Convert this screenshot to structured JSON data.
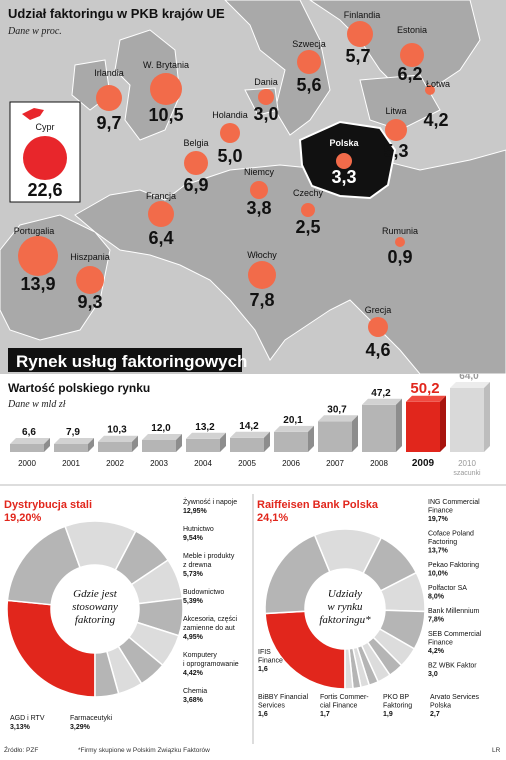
{
  "colors": {
    "map_bg": "#c9c9c9",
    "land": "#a9a9a9",
    "sea": "#d6d6d6",
    "bubble": "#f26b4a",
    "cyprus_bubble": "#e8262b",
    "poland": "#111111",
    "red": "#e1261c",
    "grey_bar": "#b5b5b5",
    "pie_grey": "#b8b8b8",
    "pie_light": "#dedede"
  },
  "map": {
    "title": "Udział faktoringu w PKB krajów UE",
    "subtitle": "Dane w proc.",
    "chart_data": {
      "type": "bubble-map",
      "unit": "%",
      "countries": [
        {
          "name": "Finlandia",
          "value": "5,7"
        },
        {
          "name": "Estonia",
          "value": "6,2"
        },
        {
          "name": "Łotwa",
          "value": "4,2"
        },
        {
          "name": "Litwa",
          "value": "5,3"
        },
        {
          "name": "Szwecja",
          "value": "5,6"
        },
        {
          "name": "Dania",
          "value": "3,0"
        },
        {
          "name": "Irlandia",
          "value": "9,7"
        },
        {
          "name": "W. Brytania",
          "value": "10,5"
        },
        {
          "name": "Holandia",
          "value": "5,0"
        },
        {
          "name": "Belgia",
          "value": "6,9"
        },
        {
          "name": "Polska",
          "value": "3,3"
        },
        {
          "name": "Niemcy",
          "value": "3,8"
        },
        {
          "name": "Czechy",
          "value": "2,5"
        },
        {
          "name": "Francja",
          "value": "6,4"
        },
        {
          "name": "Rumunia",
          "value": "0,9"
        },
        {
          "name": "Portugalia",
          "value": "13,9"
        },
        {
          "name": "Hiszpania",
          "value": "9,3"
        },
        {
          "name": "Włochy",
          "value": "7,8"
        },
        {
          "name": "Grecja",
          "value": "4,6"
        },
        {
          "name": "Cypr",
          "value": "22,6"
        }
      ]
    }
  },
  "banner": "Rynek usług faktoringowych",
  "bar": {
    "title": "Wartość polskiego rynku",
    "subtitle": "Dane w mld zł",
    "chart_data": {
      "type": "bar",
      "categories": [
        "2000",
        "2001",
        "2002",
        "2003",
        "2004",
        "2005",
        "2006",
        "2007",
        "2008",
        "2009",
        "2010"
      ],
      "values": [
        6.6,
        7.9,
        10.3,
        12.0,
        13.2,
        14.2,
        20.1,
        30.7,
        47.2,
        50.2,
        64.0
      ],
      "labels": [
        "6,6",
        "7,9",
        "10,3",
        "12,0",
        "13,2",
        "14,2",
        "20,1",
        "30,7",
        "47,2",
        "50,2",
        "64,0"
      ],
      "highlight": "2009",
      "forecast_note": "szacunki",
      "ylim": [
        0,
        64
      ]
    }
  },
  "pie_left": {
    "title": "Dystrybucja stali",
    "title_value": "19,20%",
    "center_lines": [
      "Gdzie jest",
      "stosowany",
      "faktoring"
    ],
    "chart_data": {
      "type": "pie",
      "slices": [
        {
          "label": "Dystrybucja stali",
          "value": 19.2,
          "text": "19,20%"
        },
        {
          "label": "Żywność i napoje",
          "value": 12.95,
          "text": "12,95%"
        },
        {
          "label": "Hutnictwo",
          "value": 9.54,
          "text": "9,54%"
        },
        {
          "label": "Meble i produkty z drewna",
          "value": 5.73,
          "text": "5,73%"
        },
        {
          "label": "Budownictwo",
          "value": 5.39,
          "text": "5,39%"
        },
        {
          "label": "Akcesoria, części zamienne do aut",
          "value": 4.95,
          "text": "4,95%"
        },
        {
          "label": "Komputery i oprogramowanie",
          "value": 4.42,
          "text": "4,42%"
        },
        {
          "label": "Chemia",
          "value": 3.68,
          "text": "3,68%"
        },
        {
          "label": "Farmaceutyki",
          "value": 3.29,
          "text": "3,29%"
        },
        {
          "label": "AGD i RTV",
          "value": 3.13,
          "text": "3,13%"
        }
      ]
    },
    "labels_right": [
      {
        "lines": [
          "Żywność i napoje"
        ],
        "value": "12,95%"
      },
      {
        "lines": [
          "Hutnictwo"
        ],
        "value": "9,54%"
      },
      {
        "lines": [
          "Meble i produkty",
          "z drewna"
        ],
        "value": "5,73%"
      },
      {
        "lines": [
          "Budownictwo"
        ],
        "value": "5,39%"
      },
      {
        "lines": [
          "Akcesoria, części",
          "zamienne do aut"
        ],
        "value": "4,95%"
      },
      {
        "lines": [
          "Komputery",
          "i oprogramowanie"
        ],
        "value": "4,42%"
      },
      {
        "lines": [
          "Chemia"
        ],
        "value": "3,68%"
      }
    ],
    "labels_bottom": [
      {
        "lines": [
          "AGD i RTV"
        ],
        "value": "3,13%"
      },
      {
        "lines": [
          "Farmaceutyki"
        ],
        "value": "3,29%"
      }
    ]
  },
  "pie_right": {
    "title": "Raiffeisen Bank Polska",
    "title_value": "24,1%",
    "center_lines": [
      "Udziały",
      "w rynku",
      "faktoringu*"
    ],
    "chart_data": {
      "type": "pie",
      "slices": [
        {
          "label": "Raiffeisen Bank Polska",
          "value": 24.1,
          "text": "24,1%"
        },
        {
          "label": "ING Commercial Finance",
          "value": 19.7,
          "text": "19,7%"
        },
        {
          "label": "Coface Poland Factoring",
          "value": 13.7,
          "text": "13,7%"
        },
        {
          "label": "Pekao Faktoring",
          "value": 10.0,
          "text": "10,0%"
        },
        {
          "label": "Polfactor SA",
          "value": 8.0,
          "text": "8,0%"
        },
        {
          "label": "Bank Millennium",
          "value": 7.8,
          "text": "7,8%"
        },
        {
          "label": "SEB Commercial Finance",
          "value": 4.2,
          "text": "4,2%"
        },
        {
          "label": "BZ WBK Faktor",
          "value": 3.0,
          "text": "3,0"
        },
        {
          "label": "Arvato Services Polska",
          "value": 2.7,
          "text": "2,7"
        },
        {
          "label": "PKO BP Faktoring",
          "value": 1.9,
          "text": "1,9"
        },
        {
          "label": "Fortis Commercial Finance",
          "value": 1.7,
          "text": "1,7"
        },
        {
          "label": "BIBBY Financial Services",
          "value": 1.6,
          "text": "1,6"
        },
        {
          "label": "IFIS Finance",
          "value": 1.6,
          "text": "1,6"
        }
      ]
    },
    "labels_right": [
      {
        "lines": [
          "ING Commercial",
          "Finance"
        ],
        "value": "19,7%"
      },
      {
        "lines": [
          "Coface Poland",
          "Factoring"
        ],
        "value": "13,7%"
      },
      {
        "lines": [
          "Pekao Faktoring"
        ],
        "value": "10,0%"
      },
      {
        "lines": [
          "Polfactor SA"
        ],
        "value": "8,0%"
      },
      {
        "lines": [
          "Bank Millennium"
        ],
        "value": "7,8%"
      },
      {
        "lines": [
          "SEB Commercial",
          "Finance"
        ],
        "value": "4,2%"
      },
      {
        "lines": [
          "BZ WBK Faktor"
        ],
        "value": "3,0"
      }
    ],
    "labels_bottom": [
      {
        "lines": [
          "IFIS",
          "Finance"
        ],
        "value": "1,6"
      },
      {
        "lines": [
          "BiBBY Financial",
          "Services"
        ],
        "value": "1,6"
      },
      {
        "lines": [
          "Fortis Commer-",
          "cial Finance"
        ],
        "value": "1,7"
      },
      {
        "lines": [
          "PKO BP",
          "Faktoring"
        ],
        "value": "1,9"
      },
      {
        "lines": [
          "Arvato Services",
          "Polska"
        ],
        "value": "2,7"
      }
    ]
  },
  "footer": {
    "source": "Źródło: PZF",
    "note": "*Firmy skupione w Polskim Związku Faktorów",
    "credit": "LR"
  }
}
